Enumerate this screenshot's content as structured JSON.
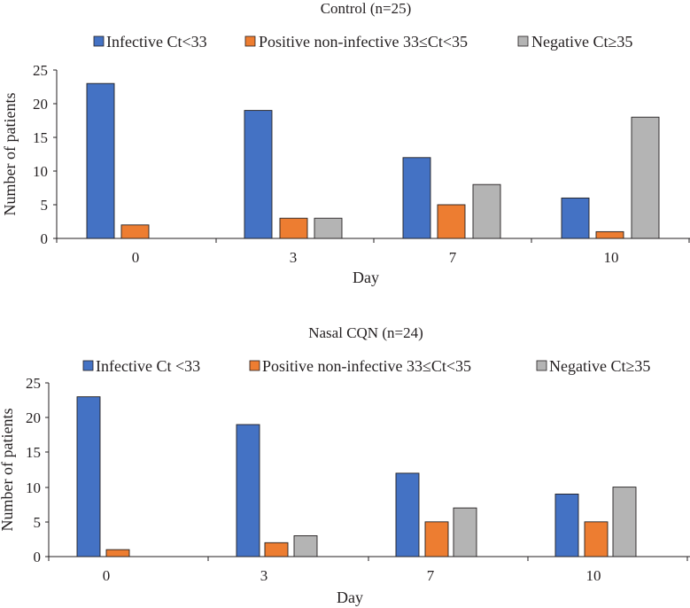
{
  "chart_data": [
    {
      "type": "bar",
      "title": "Control (n=25)",
      "xlabel": "Day",
      "ylabel": "Number of patients",
      "categories": [
        "0",
        "3",
        "7",
        "10"
      ],
      "ylim": [
        0,
        25
      ],
      "yticks": [
        "0",
        "5",
        "10",
        "15",
        "20",
        "25"
      ],
      "legend_position": "top",
      "series": [
        {
          "name": "Infective Ct<33",
          "color": "#4472c4",
          "values": [
            23,
            19,
            12,
            6
          ]
        },
        {
          "name": "Positive non-infective 33≤Ct<35",
          "color": "#ed7d31",
          "values": [
            2,
            3,
            5,
            1
          ]
        },
        {
          "name": "Negative Ct≥35",
          "color": "#b4b4b4",
          "values": [
            0,
            3,
            8,
            18
          ]
        }
      ]
    },
    {
      "type": "bar",
      "title": "Nasal CQN (n=24)",
      "xlabel": "Day",
      "ylabel": "Number of patients",
      "categories": [
        "0",
        "3",
        "7",
        "10"
      ],
      "ylim": [
        0,
        25
      ],
      "yticks": [
        "0",
        "5",
        "10",
        "15",
        "20",
        "25"
      ],
      "legend_position": "top",
      "series": [
        {
          "name": "Infective Ct <33",
          "color": "#4472c4",
          "values": [
            23,
            19,
            12,
            9
          ]
        },
        {
          "name": "Positive non-infective 33≤Ct<35",
          "color": "#ed7d31",
          "values": [
            1,
            2,
            5,
            5
          ]
        },
        {
          "name": "Negative Ct≥35",
          "color": "#b4b4b4",
          "values": [
            0,
            3,
            7,
            10
          ]
        }
      ]
    }
  ]
}
